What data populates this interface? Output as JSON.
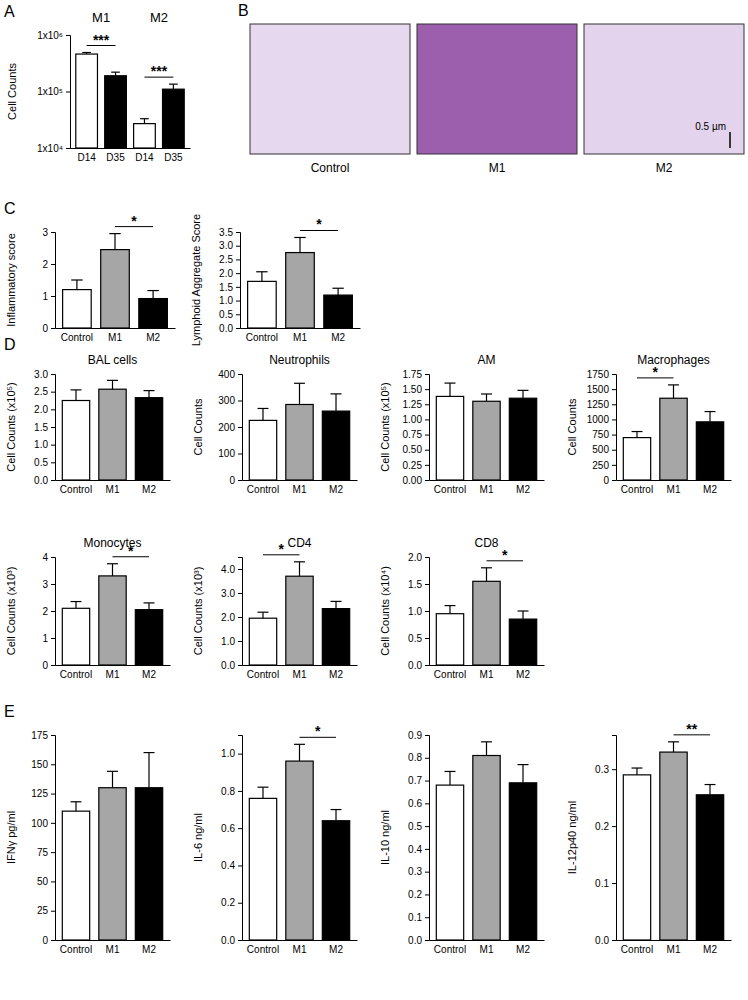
{
  "chart_data": [
    {
      "type": "bar",
      "panel_label": "A",
      "y_label": "Cell Counts",
      "log": "y",
      "groups": [
        "M1",
        "M2"
      ],
      "categories": [
        "D14",
        "D35",
        "D14",
        "D35"
      ],
      "values": [
        460000,
        190000,
        27000,
        110000
      ],
      "errors": [
        30000,
        30000,
        6000,
        25000
      ],
      "colors": [
        "#ffffff",
        "#000000",
        "#ffffff",
        "#000000"
      ],
      "ylim": [
        10000,
        1000000
      ],
      "yticks": [
        {
          "value": 10000,
          "label": "1x10⁴"
        },
        {
          "value": 100000,
          "label": "1x10⁵"
        },
        {
          "value": 1000000,
          "label": "1x10⁶"
        }
      ],
      "annotations": [
        {
          "text": "***",
          "between": [
            0,
            1
          ]
        },
        {
          "text": "***",
          "between": [
            2,
            3
          ]
        }
      ]
    },
    {
      "type": "bar",
      "panel_label": "C",
      "y_label": "Inflammatory score",
      "categories": [
        "Control",
        "M1",
        "M2"
      ],
      "values": [
        1.2,
        2.45,
        0.92
      ],
      "errors": [
        0.3,
        0.5,
        0.25
      ],
      "colors": [
        "#ffffff",
        "#a6a6a6",
        "#000000"
      ],
      "ylim": [
        0,
        3
      ],
      "yticks": [
        0,
        1,
        2,
        3
      ],
      "annotations": [
        {
          "text": "*",
          "between": [
            1,
            2
          ]
        }
      ]
    },
    {
      "type": "bar",
      "y_label": "Lymphoid Aggregate Score",
      "categories": [
        "Control",
        "M1",
        "M2"
      ],
      "values": [
        1.7,
        2.75,
        1.2
      ],
      "errors": [
        0.35,
        0.55,
        0.25
      ],
      "colors": [
        "#ffffff",
        "#a6a6a6",
        "#000000"
      ],
      "ylim": [
        0,
        3.5
      ],
      "yticks": [
        {
          "value": 0,
          "label": "0.0"
        },
        0.5,
        {
          "value": 1,
          "label": "1.0"
        },
        1.5,
        {
          "value": 2,
          "label": "2.0"
        },
        2.5,
        {
          "value": 3,
          "label": "3.0"
        },
        3.5
      ],
      "annotations": [
        {
          "text": "*",
          "between": [
            1,
            2
          ]
        }
      ]
    },
    {
      "type": "bar",
      "panel_label": "D",
      "title": "BAL cells",
      "y_label": "Cell Counts (x10⁵)",
      "categories": [
        "Control",
        "M1",
        "M2"
      ],
      "values": [
        2.25,
        2.57,
        2.33
      ],
      "errors": [
        0.3,
        0.25,
        0.2
      ],
      "colors": [
        "#ffffff",
        "#a6a6a6",
        "#000000"
      ],
      "ylim": [
        0,
        3
      ],
      "yticks": [
        {
          "value": 0,
          "label": "0.0"
        },
        0.5,
        {
          "value": 1,
          "label": "1.0"
        },
        1.5,
        {
          "value": 2,
          "label": "2.0"
        },
        2.5,
        {
          "value": 3,
          "label": "3.0"
        }
      ],
      "annotations": []
    },
    {
      "type": "bar",
      "title": "Neutrophils",
      "y_label": "Cell Counts",
      "categories": [
        "Control",
        "M1",
        "M2"
      ],
      "values": [
        225,
        285,
        260
      ],
      "errors": [
        45,
        80,
        65
      ],
      "colors": [
        "#ffffff",
        "#a6a6a6",
        "#000000"
      ],
      "ylim": [
        0,
        400
      ],
      "yticks": [
        0,
        100,
        200,
        300,
        400
      ],
      "annotations": []
    },
    {
      "type": "bar",
      "title": "AM",
      "y_label": "Cell Counts (x10⁵)",
      "categories": [
        "Control",
        "M1",
        "M2"
      ],
      "values": [
        1.38,
        1.3,
        1.35
      ],
      "errors": [
        0.22,
        0.12,
        0.13
      ],
      "colors": [
        "#ffffff",
        "#a6a6a6",
        "#000000"
      ],
      "ylim": [
        0,
        1.75
      ],
      "yticks": [
        {
          "value": 0,
          "label": "0.00"
        },
        0.25,
        {
          "value": 0.5,
          "label": "0.50"
        },
        0.75,
        {
          "value": 1,
          "label": "1.00"
        },
        1.25,
        {
          "value": 1.5,
          "label": "1.50"
        },
        1.75
      ],
      "annotations": []
    },
    {
      "type": "bar",
      "title": "Macrophages",
      "y_label": "Cell Counts",
      "categories": [
        "Control",
        "M1",
        "M2"
      ],
      "values": [
        700,
        1350,
        960
      ],
      "errors": [
        100,
        220,
        170
      ],
      "colors": [
        "#ffffff",
        "#a6a6a6",
        "#000000"
      ],
      "ylim": [
        0,
        1750
      ],
      "yticks": [
        0,
        250,
        500,
        750,
        1000,
        1250,
        1500,
        1750
      ],
      "annotations": [
        {
          "text": "*",
          "between": [
            0,
            1
          ]
        }
      ]
    },
    {
      "type": "bar",
      "title": "Monocytes",
      "y_label": "Cell Counts (x10³)",
      "categories": [
        "Control",
        "M1",
        "M2"
      ],
      "values": [
        2.1,
        3.3,
        2.05
      ],
      "errors": [
        0.25,
        0.45,
        0.25
      ],
      "colors": [
        "#ffffff",
        "#a6a6a6",
        "#000000"
      ],
      "ylim": [
        0,
        4
      ],
      "yticks": [
        0,
        1,
        2,
        3,
        4
      ],
      "annotations": [
        {
          "text": "*",
          "between": [
            1,
            2
          ]
        }
      ]
    },
    {
      "type": "bar",
      "title": "CD4",
      "y_label": "Cell Counts (x10³)",
      "categories": [
        "Control",
        "M1",
        "M2"
      ],
      "values": [
        1.95,
        3.7,
        2.35
      ],
      "errors": [
        0.25,
        0.6,
        0.3
      ],
      "colors": [
        "#ffffff",
        "#a6a6a6",
        "#000000"
      ],
      "ylim": [
        0,
        4.5
      ],
      "yticks": [
        {
          "value": 0,
          "label": "0.0"
        },
        {
          "value": 1,
          "label": "1.0"
        },
        {
          "value": 2,
          "label": "2.0"
        },
        {
          "value": 3,
          "label": "3.0"
        },
        {
          "value": 4,
          "label": "4.0"
        }
      ],
      "annotations": [
        {
          "text": "*",
          "between": [
            0,
            1
          ]
        }
      ]
    },
    {
      "type": "bar",
      "title": "CD8",
      "y_label": "Cell Counts (x10⁴)",
      "categories": [
        "Control",
        "M1",
        "M2"
      ],
      "values": [
        0.95,
        1.55,
        0.85
      ],
      "errors": [
        0.15,
        0.25,
        0.15
      ],
      "colors": [
        "#ffffff",
        "#a6a6a6",
        "#000000"
      ],
      "ylim": [
        0,
        2
      ],
      "yticks": [
        {
          "value": 0,
          "label": "0.0"
        },
        0.5,
        {
          "value": 1,
          "label": "1.0"
        },
        1.5,
        {
          "value": 2,
          "label": "2.0"
        }
      ],
      "annotations": [
        {
          "text": "*",
          "between": [
            1,
            2
          ]
        }
      ]
    },
    {
      "type": "bar",
      "panel_label": "E",
      "y_label": "IFNγ pg/ml",
      "categories": [
        "Control",
        "M1",
        "M2"
      ],
      "values": [
        110,
        130,
        130
      ],
      "errors": [
        8,
        14,
        30
      ],
      "colors": [
        "#ffffff",
        "#a6a6a6",
        "#000000"
      ],
      "ylim": [
        0,
        175
      ],
      "yticks": [
        0,
        25,
        50,
        75,
        100,
        125,
        150,
        175
      ],
      "annotations": []
    },
    {
      "type": "bar",
      "y_label": "IL-6 ng/ml",
      "categories": [
        "Control",
        "M1",
        "M2"
      ],
      "values": [
        0.76,
        0.96,
        0.64
      ],
      "errors": [
        0.06,
        0.09,
        0.06
      ],
      "colors": [
        "#ffffff",
        "#a6a6a6",
        "#000000"
      ],
      "ylim": [
        0,
        1.1
      ],
      "yticks": [
        {
          "value": 0,
          "label": "0.0"
        },
        0.2,
        0.4,
        0.6,
        0.8,
        {
          "value": 1,
          "label": "1.0"
        }
      ],
      "annotations": [
        {
          "text": "*",
          "between": [
            1,
            2
          ]
        }
      ]
    },
    {
      "type": "bar",
      "y_label": "IL-10 ng/ml",
      "categories": [
        "Control",
        "M1",
        "M2"
      ],
      "values": [
        0.68,
        0.81,
        0.69
      ],
      "errors": [
        0.06,
        0.06,
        0.08
      ],
      "colors": [
        "#ffffff",
        "#a6a6a6",
        "#000000"
      ],
      "ylim": [
        0,
        0.9
      ],
      "yticks": [
        {
          "value": 0,
          "label": "0.0"
        },
        0.1,
        0.2,
        0.3,
        0.4,
        0.5,
        0.6,
        0.7,
        0.8,
        0.9
      ],
      "annotations": []
    },
    {
      "type": "bar",
      "y_label": "IL-12p40 ng/ml",
      "categories": [
        "Control",
        "M1",
        "M2"
      ],
      "values": [
        0.29,
        0.33,
        0.255
      ],
      "errors": [
        0.012,
        0.018,
        0.018
      ],
      "colors": [
        "#ffffff",
        "#a6a6a6",
        "#000000"
      ],
      "ylim": [
        0,
        0.36
      ],
      "yticks": [
        {
          "value": 0,
          "label": "0.0"
        },
        0.1,
        0.2,
        0.3
      ],
      "annotations": [
        {
          "text": "**",
          "between": [
            1,
            2
          ]
        }
      ]
    }
  ],
  "image_panel": {
    "panel_label": "B",
    "captions": [
      "Control",
      "M1",
      "M2"
    ],
    "scale_bar": "0.5 µm"
  }
}
